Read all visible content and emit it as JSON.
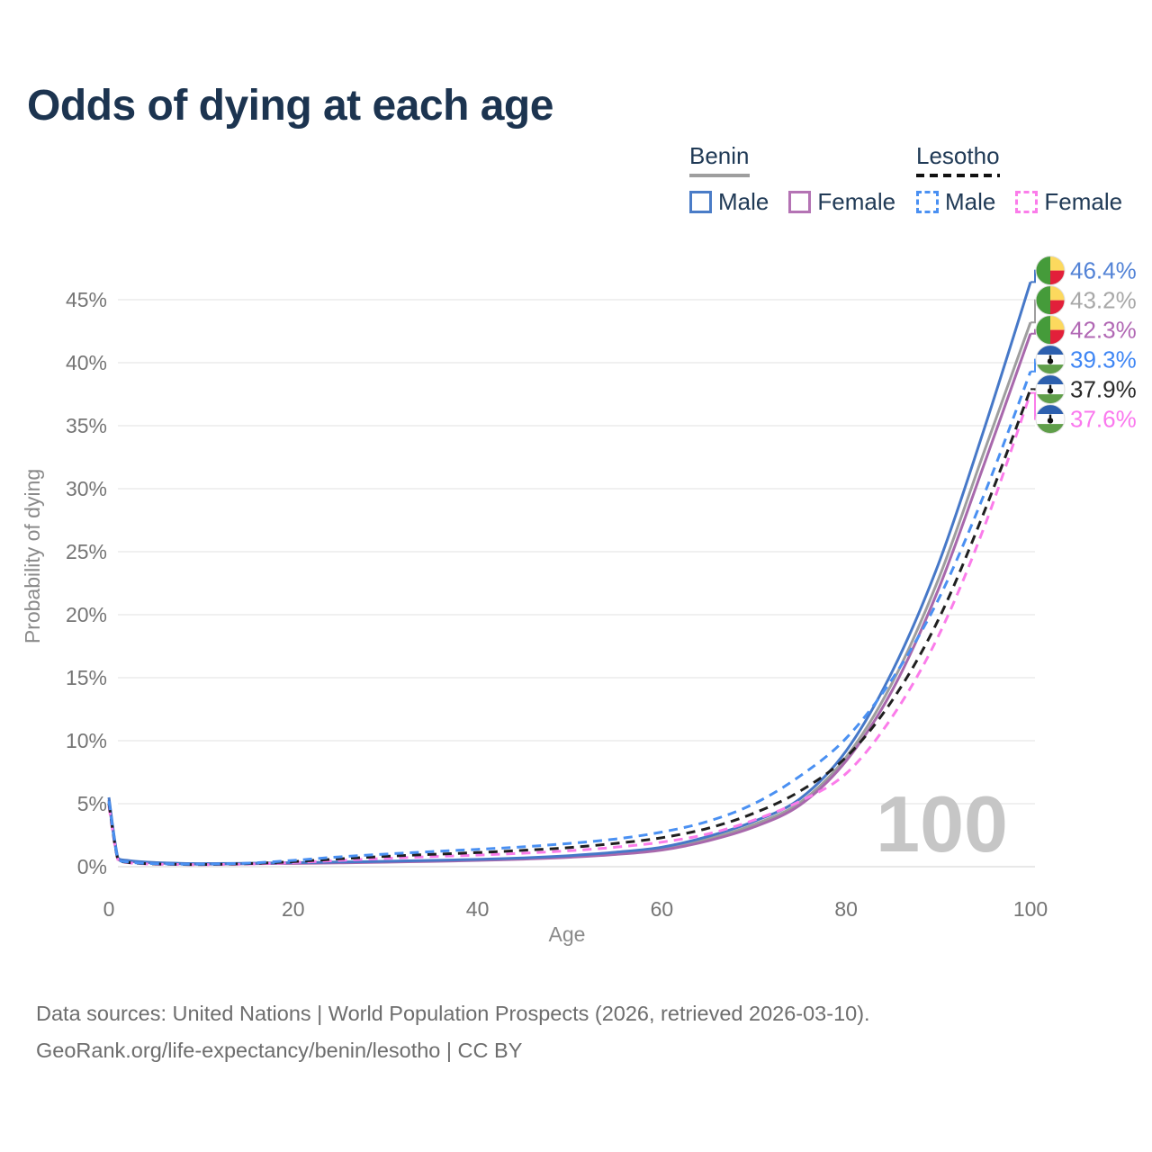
{
  "title": "Odds of dying at each age",
  "watermark": "100",
  "legend": {
    "groups": [
      {
        "name": "Benin",
        "line_style": "solid",
        "underline_color": "#9e9e9e",
        "items": [
          {
            "label": "Male",
            "color": "#4a7cc7",
            "dashed": false
          },
          {
            "label": "Female",
            "color": "#b473b4",
            "dashed": false
          }
        ]
      },
      {
        "name": "Lesotho",
        "line_style": "dashed",
        "underline_color": "#111111",
        "items": [
          {
            "label": "Male",
            "color": "#4a90f2",
            "dashed": true
          },
          {
            "label": "Female",
            "color": "#fb7cea",
            "dashed": true
          }
        ]
      }
    ]
  },
  "footer": {
    "line1": "Data sources: United Nations | World Population Prospects (2026, retrieved 2026-03-10).",
    "line2": "GeoRank.org/life-expectancy/benin/lesotho | CC BY"
  },
  "chart_data": {
    "type": "line",
    "title": "Odds of dying at each age",
    "xlabel": "Age",
    "ylabel": "Probability of dying",
    "xlim": [
      0,
      100
    ],
    "ylim": [
      0,
      47
    ],
    "grid": true,
    "legend_position": "top-right",
    "xticks": [
      {
        "value": 0,
        "label": "0"
      },
      {
        "value": 20,
        "label": "20"
      },
      {
        "value": 40,
        "label": "40"
      },
      {
        "value": 60,
        "label": "60"
      },
      {
        "value": 80,
        "label": "80"
      },
      {
        "value": 100,
        "label": "100"
      }
    ],
    "yticks": [
      {
        "value": 0,
        "label": "0%"
      },
      {
        "value": 5,
        "label": "5%"
      },
      {
        "value": 10,
        "label": "10%"
      },
      {
        "value": 15,
        "label": "15%"
      },
      {
        "value": 20,
        "label": "20%"
      },
      {
        "value": 25,
        "label": "25%"
      },
      {
        "value": 30,
        "label": "30%"
      },
      {
        "value": 35,
        "label": "35%"
      },
      {
        "value": 40,
        "label": "40%"
      },
      {
        "value": 45,
        "label": "45%"
      }
    ],
    "x": [
      0,
      1,
      2,
      3,
      5,
      8,
      10,
      15,
      20,
      25,
      30,
      35,
      40,
      45,
      50,
      55,
      60,
      65,
      70,
      75,
      80,
      85,
      90,
      95,
      100
    ],
    "series": [
      {
        "name": "Benin Male",
        "country": "Benin",
        "sex": "Male",
        "color": "#4678c8",
        "label_color": "#5383d6",
        "dashed": false,
        "flag": "benin",
        "end_label": "46.4%",
        "end_value": 46.4,
        "values": [
          5.5,
          0.65,
          0.5,
          0.42,
          0.33,
          0.26,
          0.24,
          0.27,
          0.32,
          0.37,
          0.43,
          0.5,
          0.58,
          0.7,
          0.88,
          1.15,
          1.55,
          2.4,
          3.6,
          5.4,
          9.2,
          15.5,
          24.0,
          34.8,
          46.4
        ]
      },
      {
        "name": "Benin Both sexes",
        "country": "Benin",
        "sex": "Both",
        "color": "#9e9e9e",
        "label_color": "#a8a8a8",
        "dashed": false,
        "flag": "benin",
        "end_label": "43.2%",
        "end_value": 43.2,
        "values": [
          5.3,
          0.62,
          0.47,
          0.4,
          0.31,
          0.24,
          0.22,
          0.25,
          0.29,
          0.34,
          0.4,
          0.46,
          0.54,
          0.65,
          0.82,
          1.05,
          1.45,
          2.2,
          3.35,
          5.1,
          8.7,
          14.6,
          22.8,
          33.0,
          43.2
        ]
      },
      {
        "name": "Benin Female",
        "country": "Benin",
        "sex": "Female",
        "color": "#a868ac",
        "label_color": "#b168b4",
        "dashed": false,
        "flag": "benin",
        "end_label": "42.3%",
        "end_value": 42.3,
        "values": [
          5.1,
          0.58,
          0.44,
          0.37,
          0.29,
          0.22,
          0.2,
          0.23,
          0.26,
          0.3,
          0.36,
          0.42,
          0.5,
          0.6,
          0.75,
          0.97,
          1.32,
          2.05,
          3.15,
          4.9,
          8.4,
          14.0,
          22.0,
          32.0,
          42.3
        ]
      },
      {
        "name": "Lesotho Male",
        "country": "Lesotho",
        "sex": "Male",
        "color": "#4a90f2",
        "label_color": "#3f86f4",
        "dashed": true,
        "flag": "lesotho",
        "end_label": "39.3%",
        "end_value": 39.3,
        "values": [
          5.2,
          0.55,
          0.38,
          0.3,
          0.24,
          0.2,
          0.19,
          0.28,
          0.5,
          0.78,
          1.0,
          1.2,
          1.38,
          1.58,
          1.85,
          2.2,
          2.75,
          3.6,
          5.0,
          7.2,
          10.2,
          14.9,
          21.2,
          29.6,
          39.3
        ]
      },
      {
        "name": "Lesotho Both sexes",
        "country": "Lesotho",
        "sex": "Both",
        "color": "#1f1f1f",
        "label_color": "#2b2b2b",
        "dashed": true,
        "flag": "lesotho",
        "end_label": "37.9%",
        "end_value": 37.9,
        "values": [
          5.0,
          0.52,
          0.35,
          0.28,
          0.22,
          0.18,
          0.17,
          0.24,
          0.4,
          0.62,
          0.82,
          0.98,
          1.12,
          1.3,
          1.52,
          1.85,
          2.3,
          3.05,
          4.25,
          6.0,
          8.7,
          13.2,
          19.6,
          28.2,
          37.9
        ]
      },
      {
        "name": "Lesotho Female",
        "country": "Lesotho",
        "sex": "Female",
        "color": "#fb7cea",
        "label_color": "#fa78ee",
        "dashed": true,
        "flag": "lesotho",
        "end_label": "37.6%",
        "end_value": 37.6,
        "values": [
          4.8,
          0.5,
          0.33,
          0.26,
          0.2,
          0.17,
          0.16,
          0.21,
          0.33,
          0.5,
          0.66,
          0.8,
          0.92,
          1.07,
          1.27,
          1.55,
          1.95,
          2.6,
          3.7,
          5.2,
          7.4,
          11.9,
          18.3,
          27.0,
          37.6
        ]
      }
    ],
    "flag_colors": {
      "benin": {
        "green": "#459b3a",
        "yellow": "#fcd95e",
        "red": "#e2203a"
      },
      "lesotho": {
        "blue": "#2c5fae",
        "white": "#fdfdfd",
        "green": "#5f9e49",
        "hat": "#111111"
      }
    }
  }
}
